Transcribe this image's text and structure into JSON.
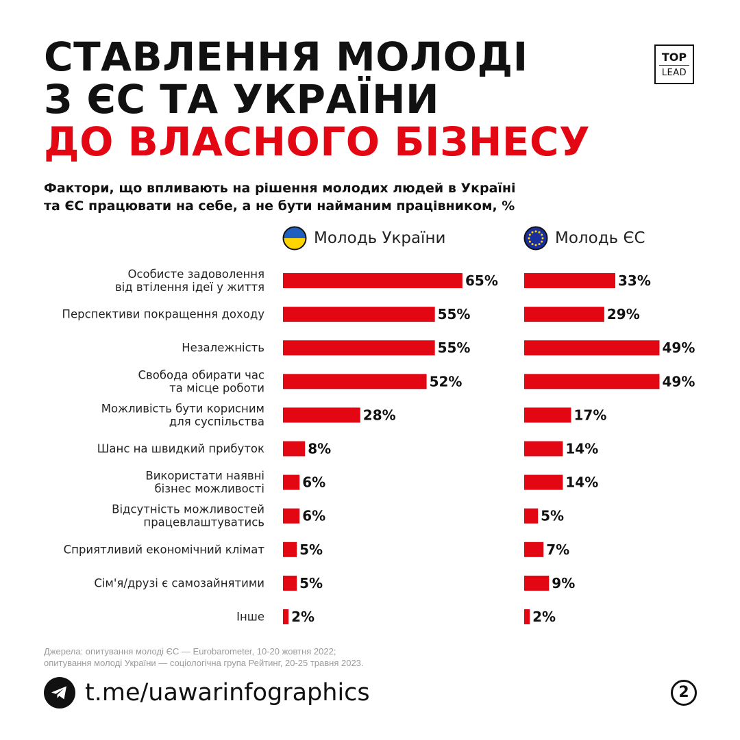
{
  "header": {
    "title_line1": "СТАВЛЕННЯ МОЛОДІ",
    "title_line2": "З ЄС ТА УКРАЇНИ",
    "title_line3": "ДО ВЛАСНОГО БІЗНЕСУ",
    "subtitle_line1": "Фактори, що впливають на рішення молодих людей в Україні",
    "subtitle_line2": "та ЄС працювати на себе, а не бути найманим працівником, %"
  },
  "logo": {
    "top": "TOP",
    "lead": "LEAD"
  },
  "legend": {
    "ukraine": {
      "label": "Молодь України",
      "icon": "ukraine-flag-icon"
    },
    "eu": {
      "label": "Молодь ЄС",
      "icon": "eu-flag-icon"
    }
  },
  "colors": {
    "accent": "#e30613",
    "text": "#111111",
    "muted": "#9a9a9a",
    "ua_blue": "#1f5fbf",
    "ua_yellow": "#ffd500",
    "eu_blue": "#1a2f9e",
    "eu_star": "#ffd500"
  },
  "chart_data": {
    "type": "bar",
    "orientation": "horizontal",
    "unit": "%",
    "title": "Фактори, що впливають на рішення молодих людей в Україні та ЄС працювати на себе, а не бути найманим працівником, %",
    "categories": [
      [
        "Особисте задоволення",
        "від втілення ідеї у життя"
      ],
      [
        "Перспективи покращення доходу"
      ],
      [
        "Незалежність"
      ],
      [
        "Свобода обирати час",
        "та місце роботи"
      ],
      [
        "Можливість бути корисним",
        "для суспільства"
      ],
      [
        "Шанс на швидкий прибуток"
      ],
      [
        "Використати наявні",
        "бізнес можливості"
      ],
      [
        "Відсутність можливостей",
        "працевлаштуватись"
      ],
      [
        "Сприятливий економічний клімат"
      ],
      [
        "Сім'я/друзі є самозайнятими"
      ],
      [
        "Інше"
      ]
    ],
    "series": [
      {
        "name": "Молодь України",
        "values": [
          65,
          55,
          55,
          52,
          28,
          8,
          6,
          6,
          5,
          5,
          2
        ],
        "labels": [
          "65%",
          "55%",
          "55%",
          "52%",
          "28%",
          "8%",
          "6%",
          "6%",
          "5%",
          "5%",
          "2%"
        ]
      },
      {
        "name": "Молодь ЄС",
        "values": [
          33,
          29,
          49,
          49,
          17,
          14,
          14,
          5,
          7,
          9,
          2
        ],
        "labels": [
          "33%",
          "29%",
          "49%",
          "49%",
          "17%",
          "14%",
          "14%",
          "5%",
          "7%",
          "9%",
          "2%"
        ]
      }
    ],
    "legend": "top",
    "grid": false,
    "xlim": [
      0,
      65
    ]
  },
  "footer": {
    "source_line1": "Джерела: опитування молоді ЄС — Eurobarometer, 10-20 жовтня 2022;",
    "source_line2": "опитування молоді України — соціологічна група Рейтинг, 20-25 травня 2023.",
    "channel": "t.me/uawarinfographics",
    "channel_icon": "telegram-icon",
    "page_number": "2"
  }
}
